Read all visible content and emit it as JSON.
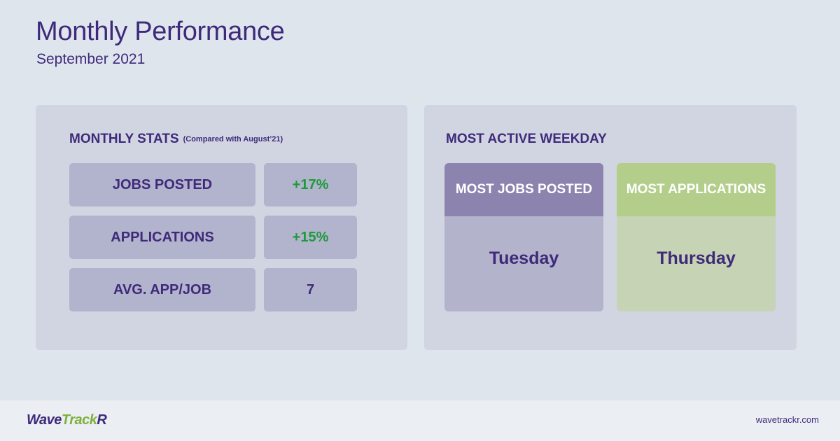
{
  "header": {
    "title": "Monthly Performance",
    "subtitle": "September 2021"
  },
  "monthly_stats": {
    "heading": "MONTHLY STATS",
    "note": "(Compared with August’21)",
    "rows": [
      {
        "label": "JOBS POSTED",
        "value": "+17%"
      },
      {
        "label": "APPLICATIONS",
        "value": "+15%"
      },
      {
        "label": "AVG. APP/JOB",
        "value": "7"
      }
    ]
  },
  "weekday": {
    "heading": "MOST ACTIVE WEEKDAY",
    "cards": [
      {
        "title": "MOST JOBS POSTED",
        "value": "Tuesday"
      },
      {
        "title": "MOST APPLICATIONS",
        "value": "Thursday"
      }
    ]
  },
  "footer": {
    "logo_part1": "Wave",
    "logo_part2": "Track",
    "logo_part3": "R",
    "site": "wavetrackr.com"
  },
  "colors": {
    "primary": "#3f2a7a",
    "positive": "#1e9a3c",
    "brand_green": "#7fb03c",
    "jobs_header": "#8c84ae",
    "apps_header": "#b3ce8a"
  }
}
